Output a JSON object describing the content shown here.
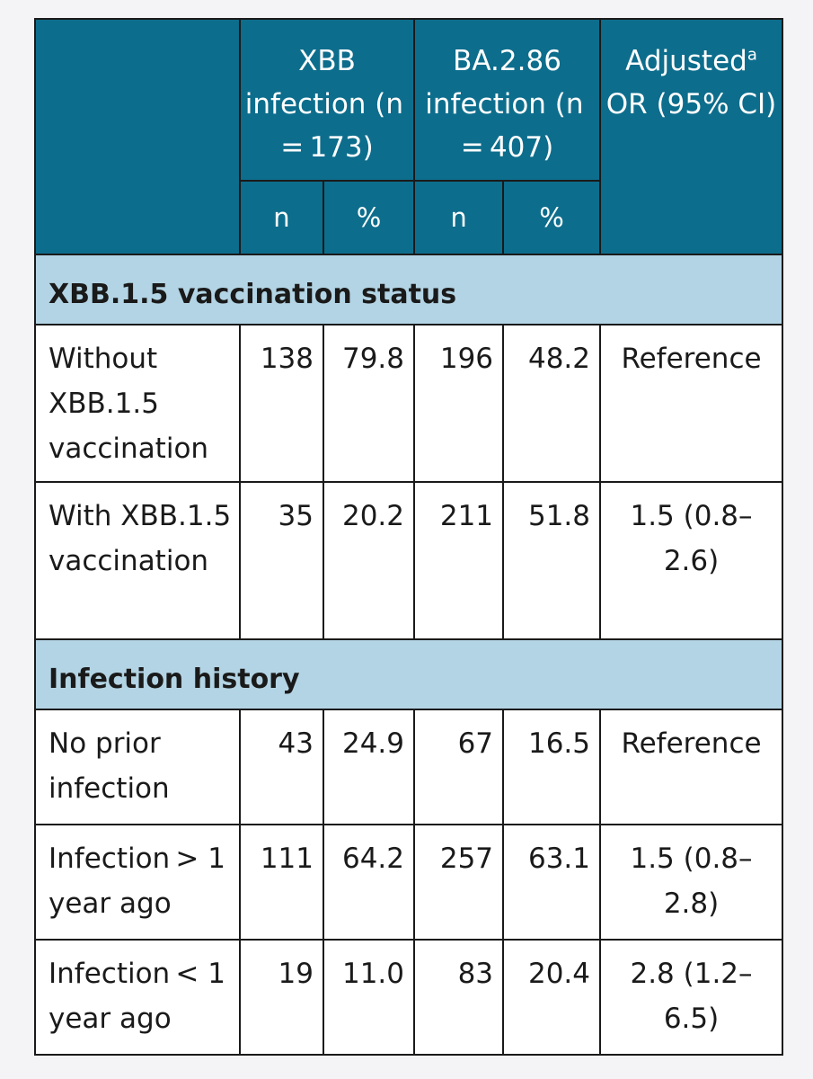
{
  "header": {
    "xbb": "XBB infection (n = 173)",
    "ba286": "BA.2.86 infection (n = 407)",
    "or_main": "Adjusted",
    "or_sup": "a",
    "or_rest": "OR (95% CI)",
    "n": "n",
    "pct": "%"
  },
  "sections": [
    {
      "title": "XBB.1.5 vaccination status",
      "rows": [
        {
          "label": "Without XBB.1.5 vaccination",
          "xbb_n": "138",
          "xbb_pct": "79.8",
          "ba_n": "196",
          "ba_pct": "48.2",
          "or": "Reference"
        },
        {
          "label": "With XBB.1.5 vaccination",
          "xbb_n": "35",
          "xbb_pct": "20.2",
          "ba_n": "211",
          "ba_pct": "51.8",
          "or": "1.5 (0.8– 2.6)"
        }
      ]
    },
    {
      "title": "Infection history",
      "rows": [
        {
          "label": "No prior infection",
          "xbb_n": "43",
          "xbb_pct": "24.9",
          "ba_n": "67",
          "ba_pct": "16.5",
          "or": "Reference"
        },
        {
          "label": "Infection > 1 year ago",
          "xbb_n": "111",
          "xbb_pct": "64.2",
          "ba_n": "257",
          "ba_pct": "63.1",
          "or": "1.5 (0.8– 2.8)"
        },
        {
          "label": "Infection < 1 year ago",
          "xbb_n": "19",
          "xbb_pct": "11.0",
          "ba_n": "83",
          "ba_pct": "20.4",
          "or": "2.8 (1.2– 6.5)"
        }
      ]
    }
  ]
}
